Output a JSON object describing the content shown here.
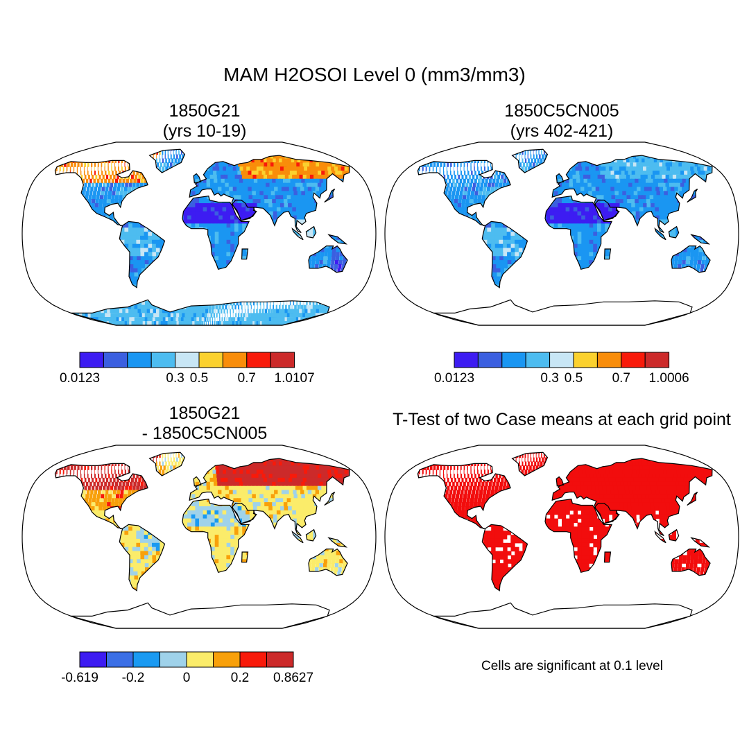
{
  "title": "MAM H2OSOI Level 0 (mm3/mm3)",
  "colors": {
    "abs_levels": [
      "#3d1cf2",
      "#3b5fe0",
      "#1a96f2",
      "#4dbcf0",
      "#c8e6f5",
      "#fbd12e",
      "#f98d0a",
      "#f81a0a",
      "#cc2a2a"
    ],
    "diff_levels": [
      "#3d1cf2",
      "#3b6fe6",
      "#1a9af2",
      "#9fd2ea",
      "#fbec6a",
      "#f8a00a",
      "#f81a0a",
      "#cc2a2a"
    ],
    "significant": "#f20d0d",
    "outline": "#000000"
  },
  "panels": [
    {
      "id": "p1",
      "title_line1": "1850G21",
      "title_line2": "(yrs 10-19)",
      "colorbar_labels": [
        "0.0123",
        "0.3",
        "0.5",
        "0.7",
        "1.0107"
      ]
    },
    {
      "id": "p2",
      "title_line1": "1850C5CN005",
      "title_line2": "(yrs 402-421)",
      "colorbar_labels": [
        "0.0123",
        "0.3",
        "0.5",
        "0.7",
        "1.0006"
      ]
    },
    {
      "id": "p3",
      "title_line1": "1850G21",
      "title_line2": "- 1850C5CN005",
      "colorbar_labels": [
        "-0.619",
        "-0.2",
        "0",
        "0.2",
        "0.8627"
      ]
    },
    {
      "id": "p4",
      "title_line1": "T-Test of two Case means at each grid point",
      "note": "Cells are significant at 0.1 level"
    }
  ]
}
